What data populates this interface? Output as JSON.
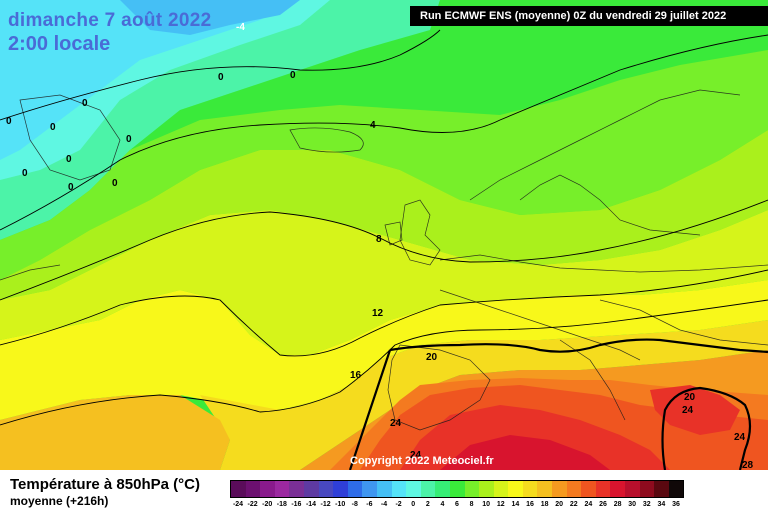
{
  "header": {
    "date": "dimanche 7 août 2022",
    "time": "2:00 locale",
    "run": "Run ECMWF ENS (moyenne) 0Z du vendredi 29 juillet 2022"
  },
  "copyright": "Copyright 2022 Meteociel.fr",
  "legend": {
    "title": "Température à 850hPa (°C)",
    "subtitle": "moyenne   (+216h)",
    "scale_labels": [
      "-24",
      "-22",
      "-20",
      "-18",
      "-16",
      "-14",
      "-12",
      "-10",
      "-8",
      "-6",
      "-4",
      "-2",
      "0",
      "2",
      "4",
      "6",
      "8",
      "10",
      "12",
      "14",
      "16",
      "18",
      "20",
      "22",
      "24",
      "26",
      "28",
      "30",
      "32",
      "34",
      "36"
    ],
    "scale_colors": [
      "#5a0c5a",
      "#6c1070",
      "#891a8c",
      "#9b28a0",
      "#7a2f96",
      "#5e3aa2",
      "#4848c0",
      "#2f3fd8",
      "#2e6ce8",
      "#3f96f0",
      "#45bff5",
      "#55e3f8",
      "#5ff7e2",
      "#4cf3a8",
      "#36ee76",
      "#3aea3a",
      "#77ef2a",
      "#aaf01c",
      "#d6f41a",
      "#f8f81a",
      "#f5dc1e",
      "#f5c020",
      "#f59a20",
      "#f47a20",
      "#ef5520",
      "#e83228",
      "#d8142e",
      "#b80f2c",
      "#8e0b1e",
      "#5a0810",
      "#100808"
    ]
  },
  "map_labels": [
    {
      "text": "-4",
      "key": "a"
    },
    {
      "text": "0",
      "key": "b"
    },
    {
      "text": "0",
      "key": "c"
    },
    {
      "text": "0",
      "key": "d"
    },
    {
      "text": "0",
      "key": "e"
    },
    {
      "text": "0",
      "key": "f"
    },
    {
      "text": "0",
      "key": "g"
    },
    {
      "text": "0",
      "key": "h"
    },
    {
      "text": "0",
      "key": "i"
    },
    {
      "text": "0",
      "key": "j"
    },
    {
      "text": "4",
      "key": "k"
    },
    {
      "text": "8",
      "key": "l"
    },
    {
      "text": "12",
      "key": "m"
    },
    {
      "text": "16",
      "key": "n"
    },
    {
      "text": "20",
      "key": "o"
    },
    {
      "text": "24",
      "key": "p"
    },
    {
      "text": "24",
      "key": "q"
    },
    {
      "text": "20",
      "key": "r"
    },
    {
      "text": "24",
      "key": "s"
    },
    {
      "text": "24",
      "key": "t"
    },
    {
      "text": "28",
      "key": "u"
    },
    {
      "text": "0",
      "key": "v"
    }
  ]
}
